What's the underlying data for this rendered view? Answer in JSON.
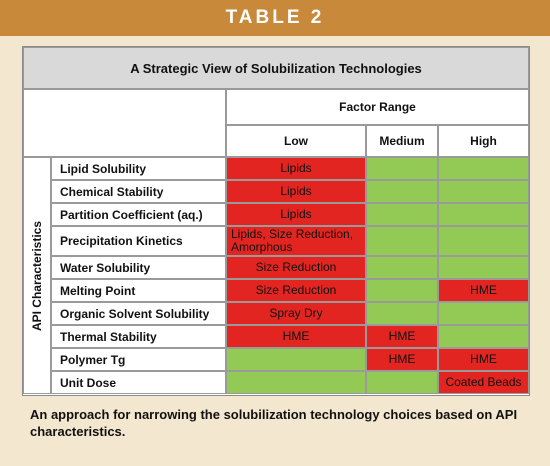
{
  "header": {
    "title": "TABLE 2"
  },
  "table": {
    "title": "A Strategic View of Solubilization Technologies",
    "factor_label": "Factor Range",
    "columns": [
      "Low",
      "Medium",
      "High"
    ],
    "row_group_label": "API Characteristics",
    "red": "#e32522",
    "green": "#93c955",
    "rows": [
      {
        "label": "Lipid Solubility",
        "cells": [
          {
            "color": "red",
            "text": "Lipids"
          },
          {
            "color": "green"
          },
          {
            "color": "green"
          }
        ]
      },
      {
        "label": "Chemical Stability",
        "cells": [
          {
            "color": "red",
            "text": "Lipids"
          },
          {
            "color": "green"
          },
          {
            "color": "green"
          }
        ]
      },
      {
        "label": "Partition Coefficient (aq.)",
        "cells": [
          {
            "color": "red",
            "text": "Lipids"
          },
          {
            "color": "green"
          },
          {
            "color": "green"
          }
        ]
      },
      {
        "label": "Precipitation Kinetics",
        "cells": [
          {
            "color": "red",
            "text": "Lipids, Size Reduction, Amorphous"
          },
          {
            "color": "green"
          },
          {
            "color": "green"
          }
        ]
      },
      {
        "label": "Water Solubility",
        "cells": [
          {
            "color": "red",
            "text": "Size Reduction"
          },
          {
            "color": "green"
          },
          {
            "color": "green"
          }
        ]
      },
      {
        "label": "Melting Point",
        "cells": [
          {
            "color": "red",
            "text": "Size Reduction"
          },
          {
            "color": "green"
          },
          {
            "color": "red",
            "text": "HME"
          }
        ]
      },
      {
        "label": "Organic Solvent Solubility",
        "cells": [
          {
            "color": "red",
            "text": "Spray Dry"
          },
          {
            "color": "green"
          },
          {
            "color": "green"
          }
        ]
      },
      {
        "label": "Thermal Stability",
        "cells": [
          {
            "color": "red",
            "text": "HME"
          },
          {
            "color": "red",
            "text": "HME"
          },
          {
            "color": "green"
          }
        ]
      },
      {
        "label": "Polymer Tg",
        "cells": [
          {
            "color": "green"
          },
          {
            "color": "red",
            "text": "HME"
          },
          {
            "color": "red",
            "text": "HME"
          }
        ]
      },
      {
        "label": "Unit Dose",
        "cells": [
          {
            "color": "green"
          },
          {
            "color": "green"
          },
          {
            "color": "red",
            "text": "Coated Beads"
          }
        ]
      }
    ]
  },
  "caption": "An approach for narrowing the solubilization technology choices based on API characteristics."
}
